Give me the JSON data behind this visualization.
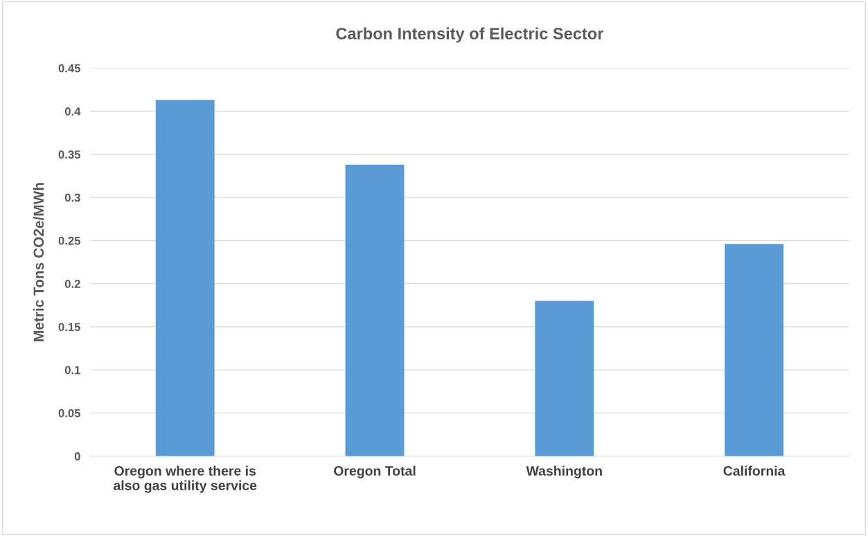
{
  "chart_data": {
    "type": "bar",
    "title": "Carbon Intensity of Electric Sector",
    "ylabel": "Metric Tons CO2e/MWh",
    "categories": [
      "Oregon where there is\nalso gas utility service",
      "Oregon Total",
      "Washington",
      "California"
    ],
    "values": [
      0.413,
      0.338,
      0.18,
      0.246
    ],
    "color": "#5b9bd5",
    "ylim": [
      0,
      0.45
    ],
    "yticks": [
      0,
      0.05,
      0.1,
      0.15,
      0.2,
      0.25,
      0.3,
      0.35,
      0.4,
      0.45
    ],
    "grid": "y",
    "legend": false
  }
}
